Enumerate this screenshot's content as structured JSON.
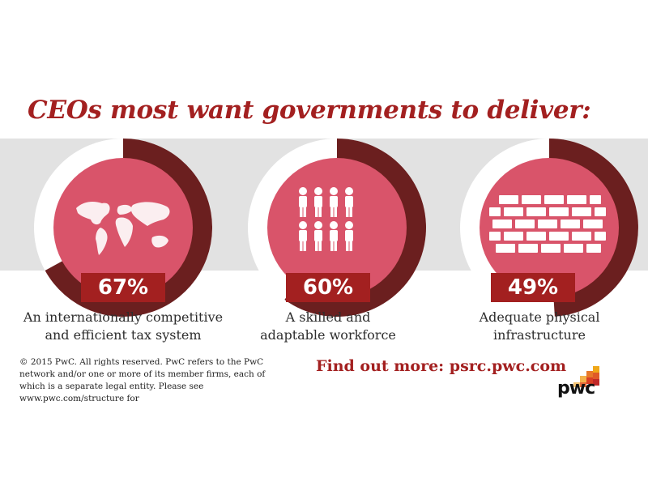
{
  "title": "CEOs most want governments to deliver:",
  "chart_data": {
    "type": "pie",
    "items": [
      {
        "label": "An internationally competitive and efficient tax system",
        "label_line1": "An internationally competitive",
        "label_line2": "and efficient tax system",
        "value": 67,
        "value_text": "67%",
        "icon": "world-map-icon"
      },
      {
        "label": "A skilled and adaptable workforce",
        "label_line1": "A skilled and",
        "label_line2": "adaptable workforce",
        "value": 60,
        "value_text": "60%",
        "icon": "people-icon"
      },
      {
        "label": "Adequate physical infrastructure",
        "label_line1": "Adequate physical",
        "label_line2": "infrastructure",
        "value": 49,
        "value_text": "49%",
        "icon": "brick-wall-icon"
      }
    ]
  },
  "footer": {
    "copyright": "© 2015 PwC. All rights reserved. PwC refers to the PwC network and/or one or more of its member firms, each of which is a separate legal entity. Please see www.pwc.com/structure for",
    "cta": "Find out more: psrc.pwc.com",
    "logo_text": "pwc"
  },
  "colors": {
    "accent": "#a32020",
    "ring_filled": "#6b1f1f",
    "ring_empty": "#ffffff",
    "inner": "#d9546a",
    "band": "#e2e2e2"
  }
}
